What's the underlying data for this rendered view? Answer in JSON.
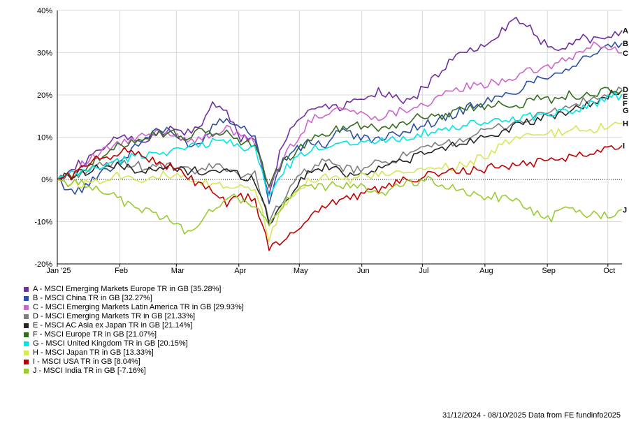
{
  "chart_data": {
    "type": "line",
    "title": "",
    "xlabel": "",
    "ylabel": "",
    "ylim": [
      -20,
      40
    ],
    "y_ticks": [
      40,
      30,
      20,
      10,
      0,
      -10,
      -20
    ],
    "y_tick_labels": [
      "40%",
      "30%",
      "20%",
      "10%",
      "0%",
      "-10%",
      "-20%"
    ],
    "x_range": [
      0,
      40
    ],
    "x_ticks": [
      {
        "label": "Jan '25",
        "x": 0
      },
      {
        "label": "Feb",
        "x": 4.43
      },
      {
        "label": "Mar",
        "x": 8.43
      },
      {
        "label": "Apr",
        "x": 12.86
      },
      {
        "label": "May",
        "x": 17.14
      },
      {
        "label": "Jun",
        "x": 21.57
      },
      {
        "label": "Jul",
        "x": 25.86
      },
      {
        "label": "Aug",
        "x": 30.29
      },
      {
        "label": "Sep",
        "x": 34.71
      },
      {
        "label": "Oct",
        "x": 39.0
      }
    ],
    "x_unit": "weeks since 31/12/2024",
    "grid": true,
    "zero_line": "dotted",
    "series": [
      {
        "letter": "A",
        "name": "MSCI Emerging Markets Europe TR in GB [35.28%]",
        "color": "#7030a0",
        "values": [
          0,
          3,
          4,
          7,
          9,
          10,
          9,
          10,
          12,
          11,
          12,
          18,
          16,
          10,
          9,
          -3,
          9,
          14,
          17,
          18,
          17,
          19,
          20,
          21,
          19,
          18,
          22,
          25,
          29,
          30,
          32,
          34,
          37,
          38,
          33,
          32,
          31,
          34,
          33,
          34,
          35.28
        ]
      },
      {
        "letter": "B",
        "name": "MSCI China TR in GB [32.27%]",
        "color": "#2e4ea0",
        "values": [
          0,
          -3,
          -2,
          2,
          3,
          6,
          9,
          12,
          11,
          9,
          8,
          13,
          15,
          12,
          11,
          -5,
          5,
          7,
          9,
          8,
          12,
          10,
          10,
          9,
          11,
          12,
          13,
          14,
          15,
          17,
          18,
          19,
          20,
          22,
          24,
          25,
          26,
          28,
          30,
          31,
          32.27
        ]
      },
      {
        "letter": "C",
        "name": "MSCI Emerging Markets Latin America TR in GB [29.93%]",
        "color": "#cc66cc",
        "values": [
          0,
          2,
          4,
          6,
          8,
          9,
          10,
          11,
          11,
          10,
          9,
          11,
          12,
          10,
          9,
          -2,
          5,
          10,
          14,
          16,
          17,
          16,
          15,
          15,
          16,
          17,
          18,
          19,
          21,
          22,
          22,
          23,
          24,
          25,
          26,
          27,
          28,
          30,
          32,
          31,
          29.93
        ]
      },
      {
        "letter": "D",
        "name": "MSCI Emerging Markets TR in GB [21.33%]",
        "color": "#7f7f7f",
        "values": [
          0,
          1,
          2,
          3,
          4,
          4,
          3,
          3,
          3,
          2,
          2,
          3,
          3,
          1,
          1,
          -9,
          -5,
          0,
          3,
          4,
          3,
          2,
          3,
          4,
          5,
          6,
          7,
          8,
          9,
          10,
          11,
          12,
          13,
          14,
          15,
          16,
          17,
          18,
          19,
          20,
          21.33
        ]
      },
      {
        "letter": "E",
        "name": "MSCI AC Asia ex Japan TR in GB [21.14%]",
        "color": "#262626",
        "values": [
          0,
          1,
          2,
          3,
          3,
          3,
          2,
          2,
          3,
          2,
          2,
          2,
          2,
          1,
          0,
          -10,
          -6,
          -1,
          2,
          3,
          2,
          1,
          2,
          3,
          4,
          5,
          6,
          7,
          8,
          9,
          10,
          11,
          12,
          13,
          14,
          15,
          16,
          17,
          18,
          20,
          21.14
        ]
      },
      {
        "letter": "F",
        "name": "MSCI Europe TR in GB [21.07%]",
        "color": "#336d1f",
        "values": [
          0,
          1,
          3,
          5,
          7,
          9,
          10,
          11,
          11,
          10,
          11,
          11,
          11,
          9,
          8,
          -1,
          4,
          7,
          9,
          11,
          12,
          13,
          13,
          12,
          13,
          14,
          15,
          15,
          16,
          17,
          17,
          18,
          18,
          18,
          19,
          19,
          20,
          20,
          20,
          21,
          21.07
        ]
      },
      {
        "letter": "G",
        "name": "MSCI United Kingdom TR in GB [20.15%]",
        "color": "#00e5e5",
        "values": [
          0,
          1,
          2,
          3,
          4,
          5,
          6,
          6,
          7,
          7,
          8,
          9,
          9,
          8,
          7,
          -4,
          2,
          5,
          7,
          8,
          9,
          9,
          9,
          9,
          10,
          10,
          11,
          11,
          12,
          13,
          13,
          14,
          14,
          15,
          15,
          16,
          16,
          17,
          18,
          19,
          20.15
        ]
      },
      {
        "letter": "H",
        "name": "MSCI Japan TR in GB [13.33%]",
        "color": "#d9e55c",
        "values": [
          0,
          -1,
          -1,
          0,
          1,
          1,
          0,
          1,
          1,
          0,
          -1,
          -1,
          -2,
          -1,
          -2,
          -14,
          -6,
          -2,
          0,
          1,
          0,
          0,
          1,
          1,
          1,
          2,
          2,
          3,
          3,
          4,
          5,
          7,
          9,
          10,
          10,
          11,
          11,
          12,
          12,
          13,
          13.33
        ]
      },
      {
        "letter": "I",
        "name": "MSCI USA TR in GB [8.04%]",
        "color": "#c00000",
        "values": [
          0,
          1,
          3,
          5,
          6,
          7,
          6,
          4,
          3,
          1,
          -1,
          -3,
          -6,
          -4,
          -5,
          -16,
          -15,
          -12,
          -8,
          -6,
          -5,
          -4,
          -3,
          -2,
          -1,
          0,
          1,
          1,
          2,
          2,
          2,
          3,
          3,
          4,
          4,
          5,
          5,
          6,
          7,
          7.5,
          8.04
        ]
      },
      {
        "letter": "J",
        "name": "MSCI India TR in GB [-7.16%]",
        "color": "#99cc33",
        "values": [
          0,
          -1,
          -1,
          -2,
          -4,
          -6,
          -7,
          -8,
          -10,
          -12,
          -11,
          -7,
          -4,
          -5,
          -6,
          -11,
          -6,
          -3,
          -1,
          -2,
          -1,
          -2,
          -2,
          -3,
          -2,
          -1,
          0,
          -1,
          -2,
          -3,
          -4,
          -4,
          -5,
          -6,
          -8,
          -9,
          -7,
          -8,
          -8,
          -8.5,
          -7.16
        ]
      }
    ]
  },
  "footer": "31/12/2024 - 08/10/2025 Data from FE fundinfo2025"
}
